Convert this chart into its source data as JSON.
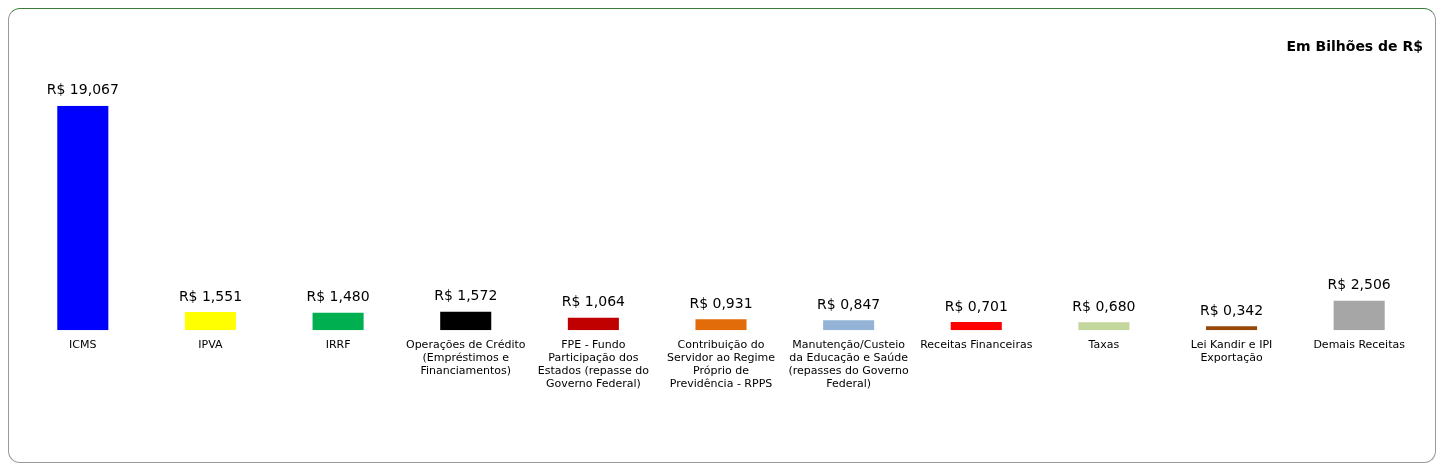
{
  "chart_data": {
    "type": "bar",
    "title": "Em Bilhões de R$",
    "categories": [
      "ICMS",
      "IPVA",
      "IRRF",
      "Operações de Crédito (Empréstimos e Financiamentos)",
      "FPE - Fundo Participação dos Estados (repasse do Governo Federal)",
      "Contribuição do Servidor ao Regime Próprio de Previdência - RPPS",
      "Manutenção/Custeio da Educação e Saúde (repasses do Governo Federal)",
      "Receitas Financeiras",
      "Taxas",
      "Lei Kandir e IPI Exportação",
      "Demais Receitas"
    ],
    "values": [
      19.067,
      1.551,
      1.48,
      1.572,
      1.064,
      0.931,
      0.847,
      0.701,
      0.68,
      0.342,
      2.506
    ],
    "colors": [
      "#0000ff",
      "#ffff00",
      "#00b050",
      "#000000",
      "#c00000",
      "#e36c0a",
      "#95b3d7",
      "#ff0000",
      "#c3d69b",
      "#974706",
      "#a6a6a6"
    ],
    "value_labels": [
      "R$ 19,067",
      "R$ 1,551",
      "R$ 1,480",
      "R$ 1,572",
      "R$ 1,064",
      "R$ 0,931",
      "R$ 0,847",
      "R$ 0,701",
      "R$ 0,680",
      "R$ 0,342",
      "R$ 2,506"
    ],
    "legend": false,
    "grid": false
  }
}
